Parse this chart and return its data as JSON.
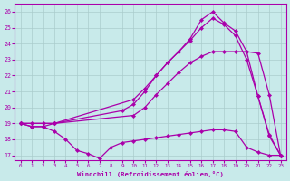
{
  "xlabel": "Windchill (Refroidissement éolien,°C)",
  "xlim": [
    -0.5,
    23.5
  ],
  "ylim": [
    16.7,
    26.5
  ],
  "xticks": [
    0,
    1,
    2,
    3,
    4,
    5,
    6,
    7,
    8,
    9,
    10,
    11,
    12,
    13,
    14,
    15,
    16,
    17,
    18,
    19,
    20,
    21,
    22,
    23
  ],
  "yticks": [
    17,
    18,
    19,
    20,
    21,
    22,
    23,
    24,
    25,
    26
  ],
  "bg_color": "#c8eaea",
  "line_color": "#aa00aa",
  "grid_color": "#aacccc",
  "lines": [
    {
      "x": [
        0,
        1,
        2,
        3,
        4,
        5,
        6,
        7,
        8,
        9,
        10,
        11,
        12,
        13,
        14,
        15,
        16,
        17,
        18,
        19,
        20,
        21,
        22,
        23
      ],
      "y": [
        19,
        18.8,
        18.8,
        18.5,
        18.0,
        17.3,
        17.1,
        16.8,
        17.5,
        17.8,
        17.9,
        18.0,
        18.1,
        18.2,
        18.3,
        18.4,
        18.5,
        18.6,
        18.6,
        18.5,
        17.5,
        17.2,
        17.0,
        17.0
      ]
    },
    {
      "x": [
        0,
        1,
        2,
        3,
        10,
        11,
        12,
        13,
        14,
        15,
        16,
        17,
        18,
        19,
        20,
        21,
        22,
        23
      ],
      "y": [
        19,
        19,
        19,
        19,
        19.5,
        20.0,
        20.8,
        21.5,
        22.2,
        22.8,
        23.2,
        23.5,
        23.5,
        23.5,
        23.5,
        23.4,
        20.8,
        17.0
      ]
    },
    {
      "x": [
        0,
        3,
        10,
        11,
        12,
        13,
        14,
        15,
        16,
        17,
        18,
        19,
        20,
        21,
        22,
        23
      ],
      "y": [
        19,
        19,
        20.5,
        21.2,
        22.0,
        22.8,
        23.5,
        24.2,
        25.0,
        25.6,
        25.2,
        24.5,
        23.0,
        20.7,
        18.3,
        17.0
      ]
    },
    {
      "x": [
        0,
        1,
        2,
        3,
        9,
        10,
        11,
        12,
        13,
        14,
        15,
        16,
        17,
        18,
        19,
        20,
        21,
        22,
        23
      ],
      "y": [
        19,
        18.8,
        18.8,
        19.0,
        19.8,
        20.2,
        21.0,
        22.0,
        22.8,
        23.5,
        24.3,
        25.5,
        26.0,
        25.3,
        24.8,
        23.5,
        20.7,
        18.2,
        17.0
      ]
    }
  ]
}
